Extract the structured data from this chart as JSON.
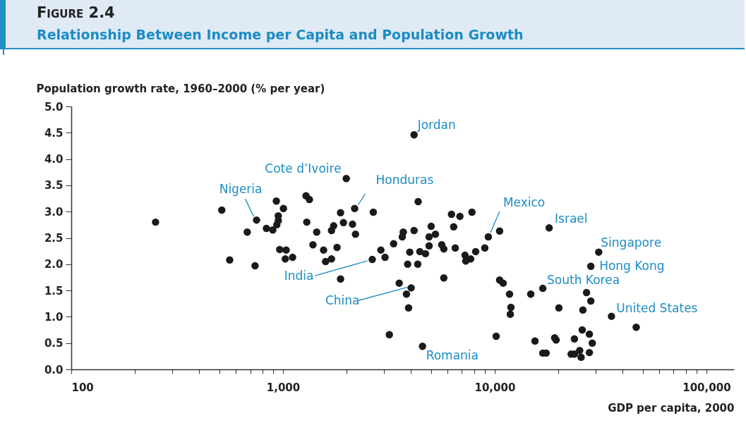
{
  "chart_data": {
    "type": "scatter",
    "title": "Figure 2.4",
    "subtitle": "Relationship Between Income per Capita and Population Growth",
    "xlabel": "GDP per capita, 2000",
    "ylabel": "Population growth rate, 1960–2000 (% per year)",
    "log": "x",
    "grid": false,
    "legend": false,
    "marker": "circle",
    "xlim": [
      100,
      135000
    ],
    "xticks": [
      {
        "value": 100,
        "label": "100"
      },
      {
        "value": 200,
        "label": null
      },
      {
        "value": 300,
        "label": null
      },
      {
        "value": 400,
        "label": null
      },
      {
        "value": 500,
        "label": null
      },
      {
        "value": 600,
        "label": null
      },
      {
        "value": 700,
        "label": null
      },
      {
        "value": 800,
        "label": null
      },
      {
        "value": 900,
        "label": null
      },
      {
        "value": 1000,
        "label": "1,000"
      },
      {
        "value": 2000,
        "label": null
      },
      {
        "value": 3000,
        "label": null
      },
      {
        "value": 4000,
        "label": null
      },
      {
        "value": 5000,
        "label": null
      },
      {
        "value": 6000,
        "label": null
      },
      {
        "value": 7000,
        "label": null
      },
      {
        "value": 8000,
        "label": null
      },
      {
        "value": 9000,
        "label": null
      },
      {
        "value": 10000,
        "label": "10,000"
      },
      {
        "value": 20000,
        "label": null
      },
      {
        "value": 30000,
        "label": null
      },
      {
        "value": 40000,
        "label": null
      },
      {
        "value": 50000,
        "label": null
      },
      {
        "value": 60000,
        "label": null
      },
      {
        "value": 70000,
        "label": null
      },
      {
        "value": 80000,
        "label": null
      },
      {
        "value": 90000,
        "label": null
      },
      {
        "value": 100000,
        "label": "100,000"
      }
    ],
    "ylim": [
      0,
      5
    ],
    "yticks": [
      {
        "value": 0,
        "label": "0.0"
      },
      0.5,
      {
        "value": 1,
        "label": "1.0"
      },
      1.5,
      {
        "value": 2,
        "label": "2.0"
      },
      2.5,
      {
        "value": 3,
        "label": "3.0"
      },
      3.5,
      {
        "value": 4,
        "label": "4.0"
      },
      4.5,
      {
        "value": 5,
        "label": "5.0"
      }
    ],
    "series": [
      {
        "color": "#1a1a1a",
        "x": [
          250,
          514,
          560,
          678,
          738,
          750,
          930,
          1005,
          950,
          950,
          935,
          835,
          895,
          965,
          1035,
          1025,
          1110,
          4160,
          1990,
          1285,
          1333,
          4350,
          2180,
          1870,
          2670,
          6250,
          6850,
          7810,
          1295,
          1930,
          2130,
          1735,
          1695,
          1443,
          2200,
          5010,
          6400,
          3700,
          4160,
          3660,
          5250,
          4900,
          4900,
          3330,
          9330,
          10550,
          1385,
          1555,
          1800,
          1695,
          1590,
          2900,
          3035,
          2640,
          3970,
          4430,
          4710,
          5620,
          5750,
          6510,
          7240,
          7700,
          7300,
          8130,
          8980,
          3880,
          4330,
          1870,
          5750,
          3540,
          4030,
          3830,
          3920,
          3180,
          10160,
          4560,
          10550,
          10960,
          11750,
          11930,
          11850,
          18080,
          31000,
          28450,
          16870,
          14800,
          27150,
          28450,
          26100,
          20100,
          35600,
          46600,
          15500,
          19200,
          19500,
          23800,
          25900,
          28000,
          28900,
          28000,
          16870,
          17500,
          22950,
          25200,
          25600,
          23800
        ],
        "values": [
          2.8,
          3.03,
          2.08,
          2.61,
          1.97,
          2.84,
          3.2,
          3.06,
          2.92,
          2.83,
          2.75,
          2.68,
          2.65,
          2.28,
          2.27,
          2.1,
          2.13,
          4.46,
          3.63,
          3.3,
          3.23,
          3.19,
          3.06,
          2.98,
          2.99,
          2.95,
          2.91,
          2.99,
          2.8,
          2.79,
          2.76,
          2.73,
          2.64,
          2.61,
          2.57,
          2.72,
          2.71,
          2.61,
          2.64,
          2.52,
          2.57,
          2.52,
          2.35,
          2.39,
          2.52,
          2.63,
          2.37,
          2.27,
          2.32,
          2.1,
          2.05,
          2.27,
          2.13,
          2.09,
          2.23,
          2.24,
          2.2,
          2.37,
          2.29,
          2.31,
          2.17,
          2.1,
          2.06,
          2.24,
          2.31,
          2.0,
          2.0,
          1.72,
          1.74,
          1.64,
          1.55,
          1.43,
          1.17,
          0.66,
          0.63,
          0.44,
          1.7,
          1.64,
          1.43,
          1.18,
          1.05,
          2.69,
          2.23,
          1.96,
          1.54,
          1.43,
          1.46,
          1.3,
          1.13,
          1.17,
          1.01,
          0.8,
          0.54,
          0.6,
          0.56,
          0.58,
          0.75,
          0.67,
          0.5,
          0.32,
          0.31,
          0.31,
          0.29,
          0.36,
          0.23,
          0.29
        ]
      }
    ],
    "annotations": [
      {
        "text": "Jordan",
        "x": 4160,
        "y": 4.46
      },
      {
        "text": "Cote d’Ivoire",
        "x": 1990,
        "y": 3.63
      },
      {
        "text": "Honduras",
        "x": 2180,
        "y": 3.06
      },
      {
        "text": "Nigeria",
        "x": 750,
        "y": 2.84
      },
      {
        "text": "Mexico",
        "x": 9330,
        "y": 2.52
      },
      {
        "text": "Israel",
        "x": 18080,
        "y": 2.69
      },
      {
        "text": "Singapore",
        "x": 31000,
        "y": 2.23
      },
      {
        "text": "Hong Kong",
        "x": 28450,
        "y": 1.96
      },
      {
        "text": "South Korea",
        "x": 16870,
        "y": 1.54
      },
      {
        "text": "United States",
        "x": 35600,
        "y": 1.01
      },
      {
        "text": "India",
        "x": 2640,
        "y": 2.09
      },
      {
        "text": "China",
        "x": 4030,
        "y": 1.55
      },
      {
        "text": "Romania",
        "x": 4560,
        "y": 0.44
      }
    ]
  }
}
